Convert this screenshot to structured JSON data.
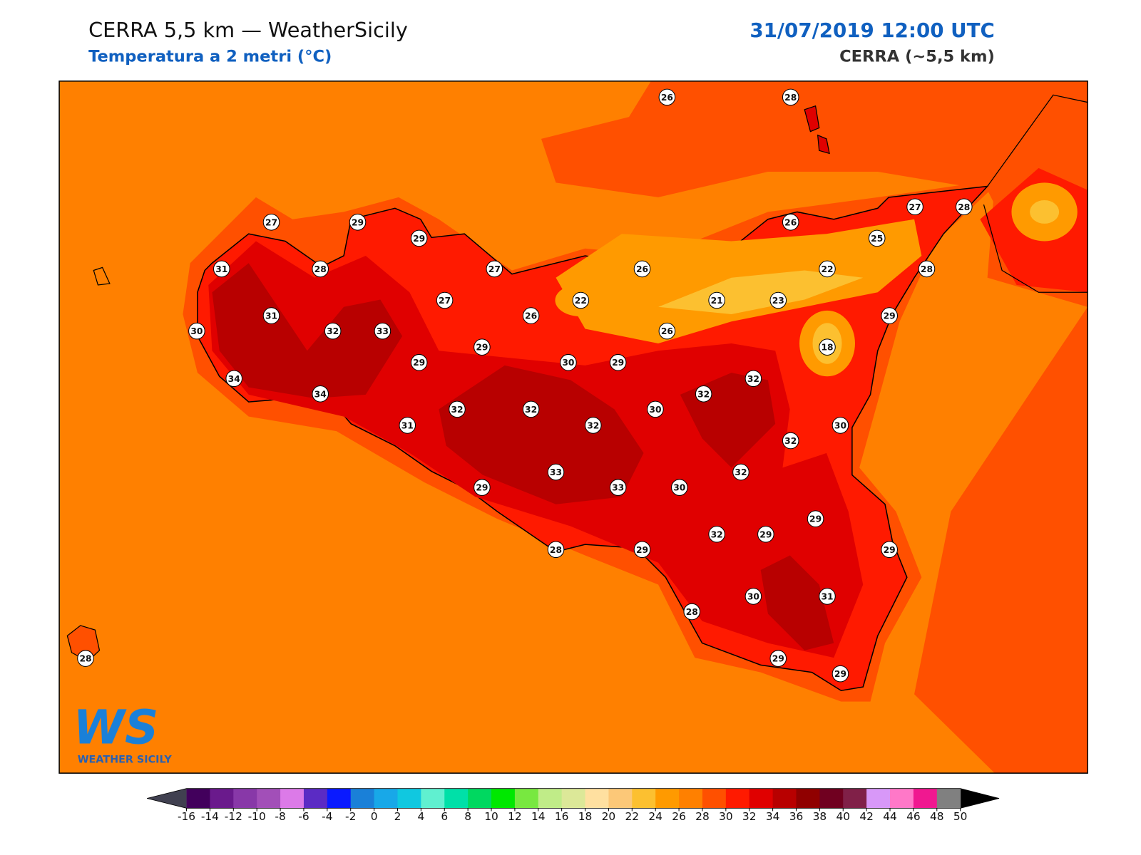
{
  "header": {
    "title": "CERRA 5,5 km — WeatherSicily",
    "subtitle": "Temperatura a 2 metri (°C)",
    "datetime": "31/07/2019 12:00 UTC",
    "model": "CERRA (~5,5 km)"
  },
  "stations": {
    "values": [
      26,
      28,
      27,
      29,
      29,
      27,
      28,
      26,
      25,
      31,
      28,
      27,
      26,
      22,
      28,
      27,
      22,
      21,
      23,
      31,
      26,
      29,
      30,
      32,
      33,
      26,
      29,
      18,
      29,
      30,
      29,
      34,
      32,
      34,
      32,
      32,
      32,
      30,
      31,
      32,
      30,
      32,
      32,
      33,
      33,
      30,
      29,
      29,
      32,
      29,
      28,
      29,
      29,
      30,
      31,
      28,
      29,
      29,
      28
    ]
  },
  "colorbar": {
    "ticks": [
      -16,
      -14,
      -12,
      -10,
      -8,
      -6,
      -4,
      -2,
      0,
      2,
      4,
      6,
      8,
      10,
      12,
      14,
      16,
      18,
      20,
      22,
      24,
      26,
      28,
      30,
      32,
      34,
      36,
      38,
      40,
      42,
      44,
      46,
      48,
      50
    ],
    "colors": [
      "#42005c",
      "#6a1a8c",
      "#8838a8",
      "#a24fb8",
      "#dc7ae8",
      "#5b2bc4",
      "#0a1aff",
      "#1a80d8",
      "#18a8e8",
      "#10c8e0",
      "#60f0d0",
      "#00e0a8",
      "#00d860",
      "#00e800",
      "#78e840",
      "#c0ec88",
      "#dce898",
      "#ffe0a0",
      "#fcc878",
      "#fcc030",
      "#ff9a00",
      "#ff8000",
      "#ff5000",
      "#ff1a00",
      "#e00000",
      "#b80000",
      "#900000",
      "#700020",
      "#802048",
      "#d898f8",
      "#ff78c8",
      "#f01890",
      "#808080",
      "#383838"
    ],
    "under_color": "#404050",
    "over_color": "#000000"
  },
  "logo": {
    "mark": "WS",
    "text": "WEATHER SICILY"
  }
}
